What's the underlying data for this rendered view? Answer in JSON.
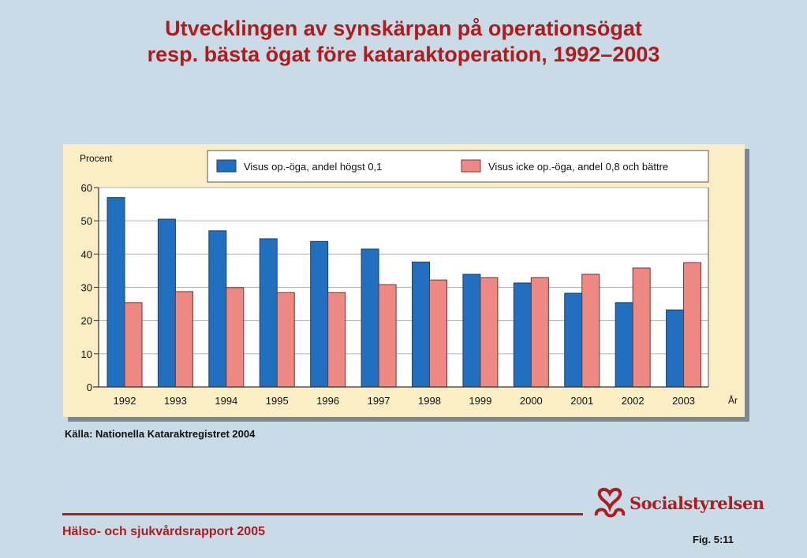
{
  "title_line1": "Utvecklingen av synskärpan på operationsögat",
  "title_line2": "resp. bästa ögat före kataraktoperation, 1992–2003",
  "source": "Källa: Nationella Kataraktregistret 2004",
  "footer": {
    "report": "Hälso- och sjukvårdsrapport 2005",
    "logo_text": "Socialstyrelsen",
    "figure": "Fig. 5:11"
  },
  "colors": {
    "title": "#b01c1c",
    "series_blue": "#2170c0",
    "series_pink": "#ee8882",
    "panel": "#fbedc4",
    "background": "#c8dbe6"
  },
  "chart_data": {
    "type": "bar",
    "title": "Utvecklingen av synskärpan på operationsögat resp. bästa ögat före kataraktoperation, 1992–2003",
    "xlabel": "År",
    "ylabel": "Procent",
    "ylim": [
      0,
      60
    ],
    "yticks": [
      0,
      10,
      20,
      30,
      40,
      50,
      60
    ],
    "grid": true,
    "legend_position": "top",
    "categories": [
      "1992",
      "1993",
      "1994",
      "1995",
      "1996",
      "1997",
      "1998",
      "1999",
      "2000",
      "2001",
      "2002",
      "2003"
    ],
    "series": [
      {
        "name": "Visus op.-öga, andel högst 0,1",
        "color": "#2170c0",
        "values": [
          57,
          50.5,
          47,
          44.6,
          43.8,
          41.5,
          37.6,
          33.9,
          31.3,
          28.2,
          25.4,
          23.2
        ]
      },
      {
        "name": "Visus icke op.-öga, andel 0,8 och bättre",
        "color": "#ee8882",
        "values": [
          25.4,
          28.7,
          29.9,
          28.4,
          28.4,
          30.8,
          32.2,
          32.9,
          32.9,
          33.9,
          35.8,
          37.4
        ]
      }
    ]
  }
}
